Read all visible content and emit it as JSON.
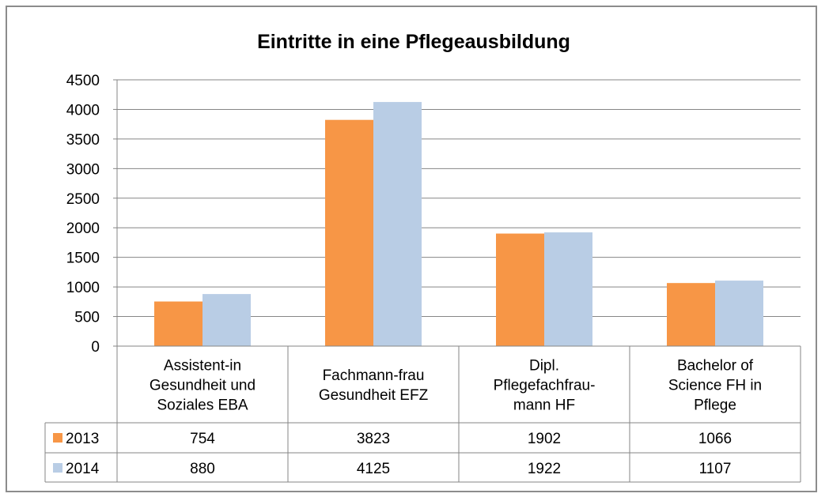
{
  "chart_data": {
    "type": "bar",
    "title": "Eintritte in eine Pflegeausbildung",
    "categories": [
      [
        "Assistent-in",
        "Gesundheit und",
        "Soziales EBA"
      ],
      [
        "Fachmann-frau",
        "Gesundheit EFZ"
      ],
      [
        "Dipl.",
        "Pflegefachfrau-",
        "mann HF"
      ],
      [
        "Bachelor of",
        "Science FH in",
        "Pflege"
      ]
    ],
    "series": [
      {
        "name": "2013",
        "color": "#f79646",
        "values": [
          754,
          3823,
          1902,
          1066
        ]
      },
      {
        "name": "2014",
        "color": "#b9cde5",
        "values": [
          880,
          4125,
          1922,
          1107
        ]
      }
    ],
    "ylim": [
      0,
      4500
    ],
    "yticks": [
      0,
      500,
      1000,
      1500,
      2000,
      2500,
      3000,
      3500,
      4000,
      4500
    ],
    "grid": true,
    "legend": "data-table"
  }
}
